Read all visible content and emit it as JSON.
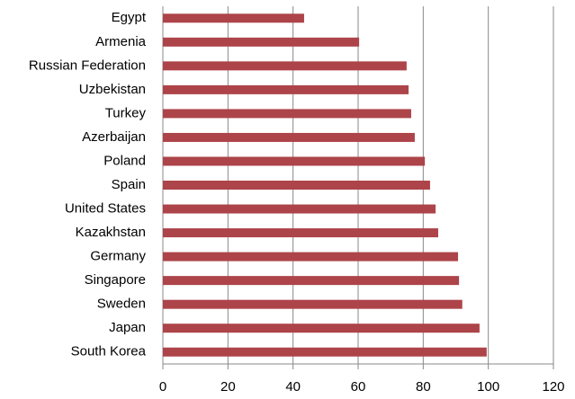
{
  "chart_data": {
    "type": "bar",
    "orientation": "horizontal",
    "categories": [
      "Egypt",
      "Armenia",
      "Russian Federation",
      "Uzbekistan",
      "Turkey",
      "Azerbaijan",
      "Poland",
      "Spain",
      "United States",
      "Kazakhstan",
      "Germany",
      "Singapore",
      "Sweden",
      "Japan",
      "South Korea"
    ],
    "values": [
      43.4,
      60.3,
      74.9,
      75.5,
      76.3,
      77.4,
      80.5,
      82.1,
      83.8,
      84.6,
      90.7,
      91,
      92,
      97.3,
      99.5
    ],
    "color": "#ad4449",
    "xlim": [
      0,
      120
    ],
    "xticks": [
      0,
      20,
      40,
      60,
      80,
      100,
      120
    ],
    "grid": true
  }
}
